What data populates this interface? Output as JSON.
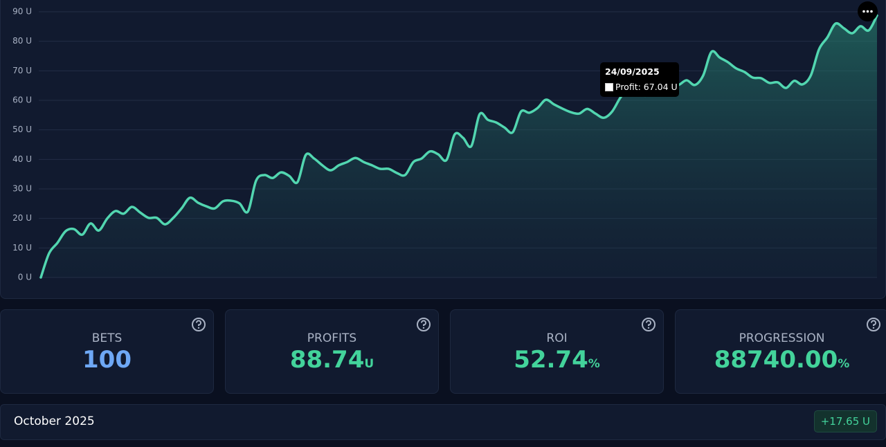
{
  "chart_data": {
    "type": "line",
    "color": "#52d6b0",
    "values": [
      0,
      8.2,
      11.7,
      15.7,
      16.4,
      14.5,
      18.3,
      15.9,
      19.9,
      22.5,
      21.6,
      23.9,
      22,
      20.2,
      20.2,
      18,
      20.2,
      23.4,
      27,
      25.3,
      24.1,
      23.4,
      25.8,
      26,
      25.1,
      22.3,
      32.8,
      34.7,
      33.7,
      35.6,
      34.4,
      32.3,
      41.5,
      40.3,
      38,
      36.3,
      38,
      39.1,
      40.5,
      39.1,
      38,
      36.8,
      36.8,
      35.4,
      34.7,
      39.1,
      40.3,
      42.7,
      41.7,
      39.8,
      48.5,
      47.3,
      44.5,
      55.3,
      53.4,
      52.5,
      50.8,
      49.2,
      56.2,
      55.8,
      57.4,
      60.2,
      58.6,
      57.2,
      56,
      55.5,
      57.1,
      55.5,
      54.1,
      56.2,
      60.9,
      64.2,
      63.7,
      62.3,
      64.7,
      64.2,
      65.6,
      65.2,
      66.8,
      65.2,
      68.4,
      76.4,
      74.5,
      72.9,
      70.8,
      69.6,
      67.7,
      67.5,
      65.9,
      66.1,
      64.2,
      66.6,
      65.4,
      68.4,
      77.3,
      81.3,
      86,
      84.4,
      82.7,
      85.1,
      83.7,
      88.74
    ],
    "ylim": [
      0,
      90
    ],
    "yticks": [
      {
        "value": 0,
        "label": "0 U"
      },
      {
        "value": 10,
        "label": "10 U"
      },
      {
        "value": 20,
        "label": "20 U"
      },
      {
        "value": 30,
        "label": "30 U"
      },
      {
        "value": 40,
        "label": "40 U"
      },
      {
        "value": 50,
        "label": "50 U"
      },
      {
        "value": 60,
        "label": "60 U"
      },
      {
        "value": 70,
        "label": "70 U"
      },
      {
        "value": 80,
        "label": "80 U"
      },
      {
        "value": 90,
        "label": "90 U"
      }
    ],
    "grid": true,
    "tooltip": {
      "date": "24/09/2025",
      "text": "Profit: 67.04 U"
    }
  },
  "stats": [
    {
      "title": "BETS",
      "value": "100"
    },
    {
      "title": "PROFITS",
      "value": "88.74",
      "unit": "U"
    },
    {
      "title": "ROI",
      "value": "52.74",
      "unit": "%"
    },
    {
      "title": "PROGRESSION",
      "value": "88740.00",
      "unit": "%"
    }
  ],
  "month": {
    "name": "October 2025",
    "result": "+17.65 U"
  }
}
